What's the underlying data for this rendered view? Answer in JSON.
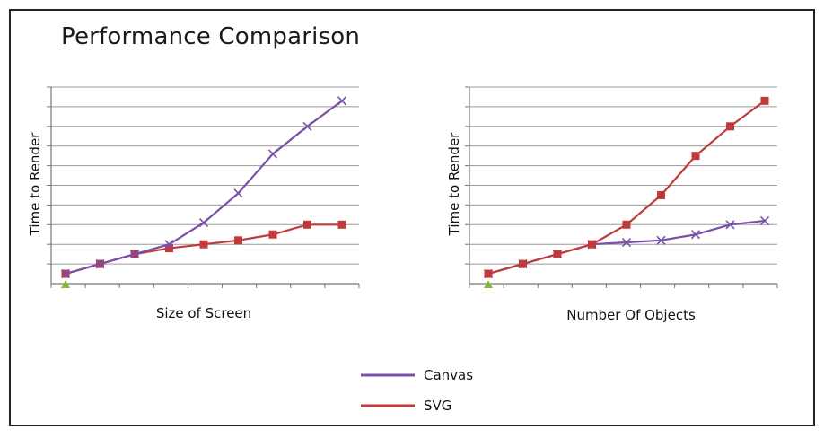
{
  "title": "Performance Comparison",
  "colors": {
    "canvas": "#7b4fa8",
    "svg": "#c0393b",
    "grid": "#9a9a9a",
    "origin": "#8ab83a"
  },
  "legend": [
    {
      "name": "Canvas",
      "color": "#7b4fa8"
    },
    {
      "name": "SVG",
      "color": "#c0393b"
    }
  ],
  "chart_data": [
    {
      "type": "line",
      "title": "",
      "xlabel": "Size of Screen",
      "ylabel": "Time to Render",
      "x": [
        1,
        2,
        3,
        4,
        5,
        6,
        7,
        8,
        9
      ],
      "ylim": [
        0,
        10
      ],
      "grid": true,
      "series": [
        {
          "name": "Canvas",
          "marker": "x",
          "values": [
            0.5,
            1.0,
            1.5,
            2.0,
            3.1,
            4.6,
            6.6,
            8.0,
            9.3
          ]
        },
        {
          "name": "SVG",
          "marker": "square",
          "values": [
            0.5,
            1.0,
            1.5,
            1.8,
            2.0,
            2.2,
            2.5,
            3.0,
            3.0
          ]
        }
      ]
    },
    {
      "type": "line",
      "title": "",
      "xlabel": "Number Of Objects",
      "ylabel": "Time to Render",
      "x": [
        1,
        2,
        3,
        4,
        5,
        6,
        7,
        8,
        9
      ],
      "ylim": [
        0,
        10
      ],
      "grid": true,
      "series": [
        {
          "name": "Canvas",
          "marker": "x",
          "values": [
            0.5,
            1.0,
            1.5,
            2.0,
            2.1,
            2.2,
            2.5,
            3.0,
            3.2
          ]
        },
        {
          "name": "SVG",
          "marker": "square",
          "values": [
            0.5,
            1.0,
            1.5,
            2.0,
            3.0,
            4.5,
            6.5,
            8.0,
            9.3
          ]
        }
      ]
    }
  ]
}
